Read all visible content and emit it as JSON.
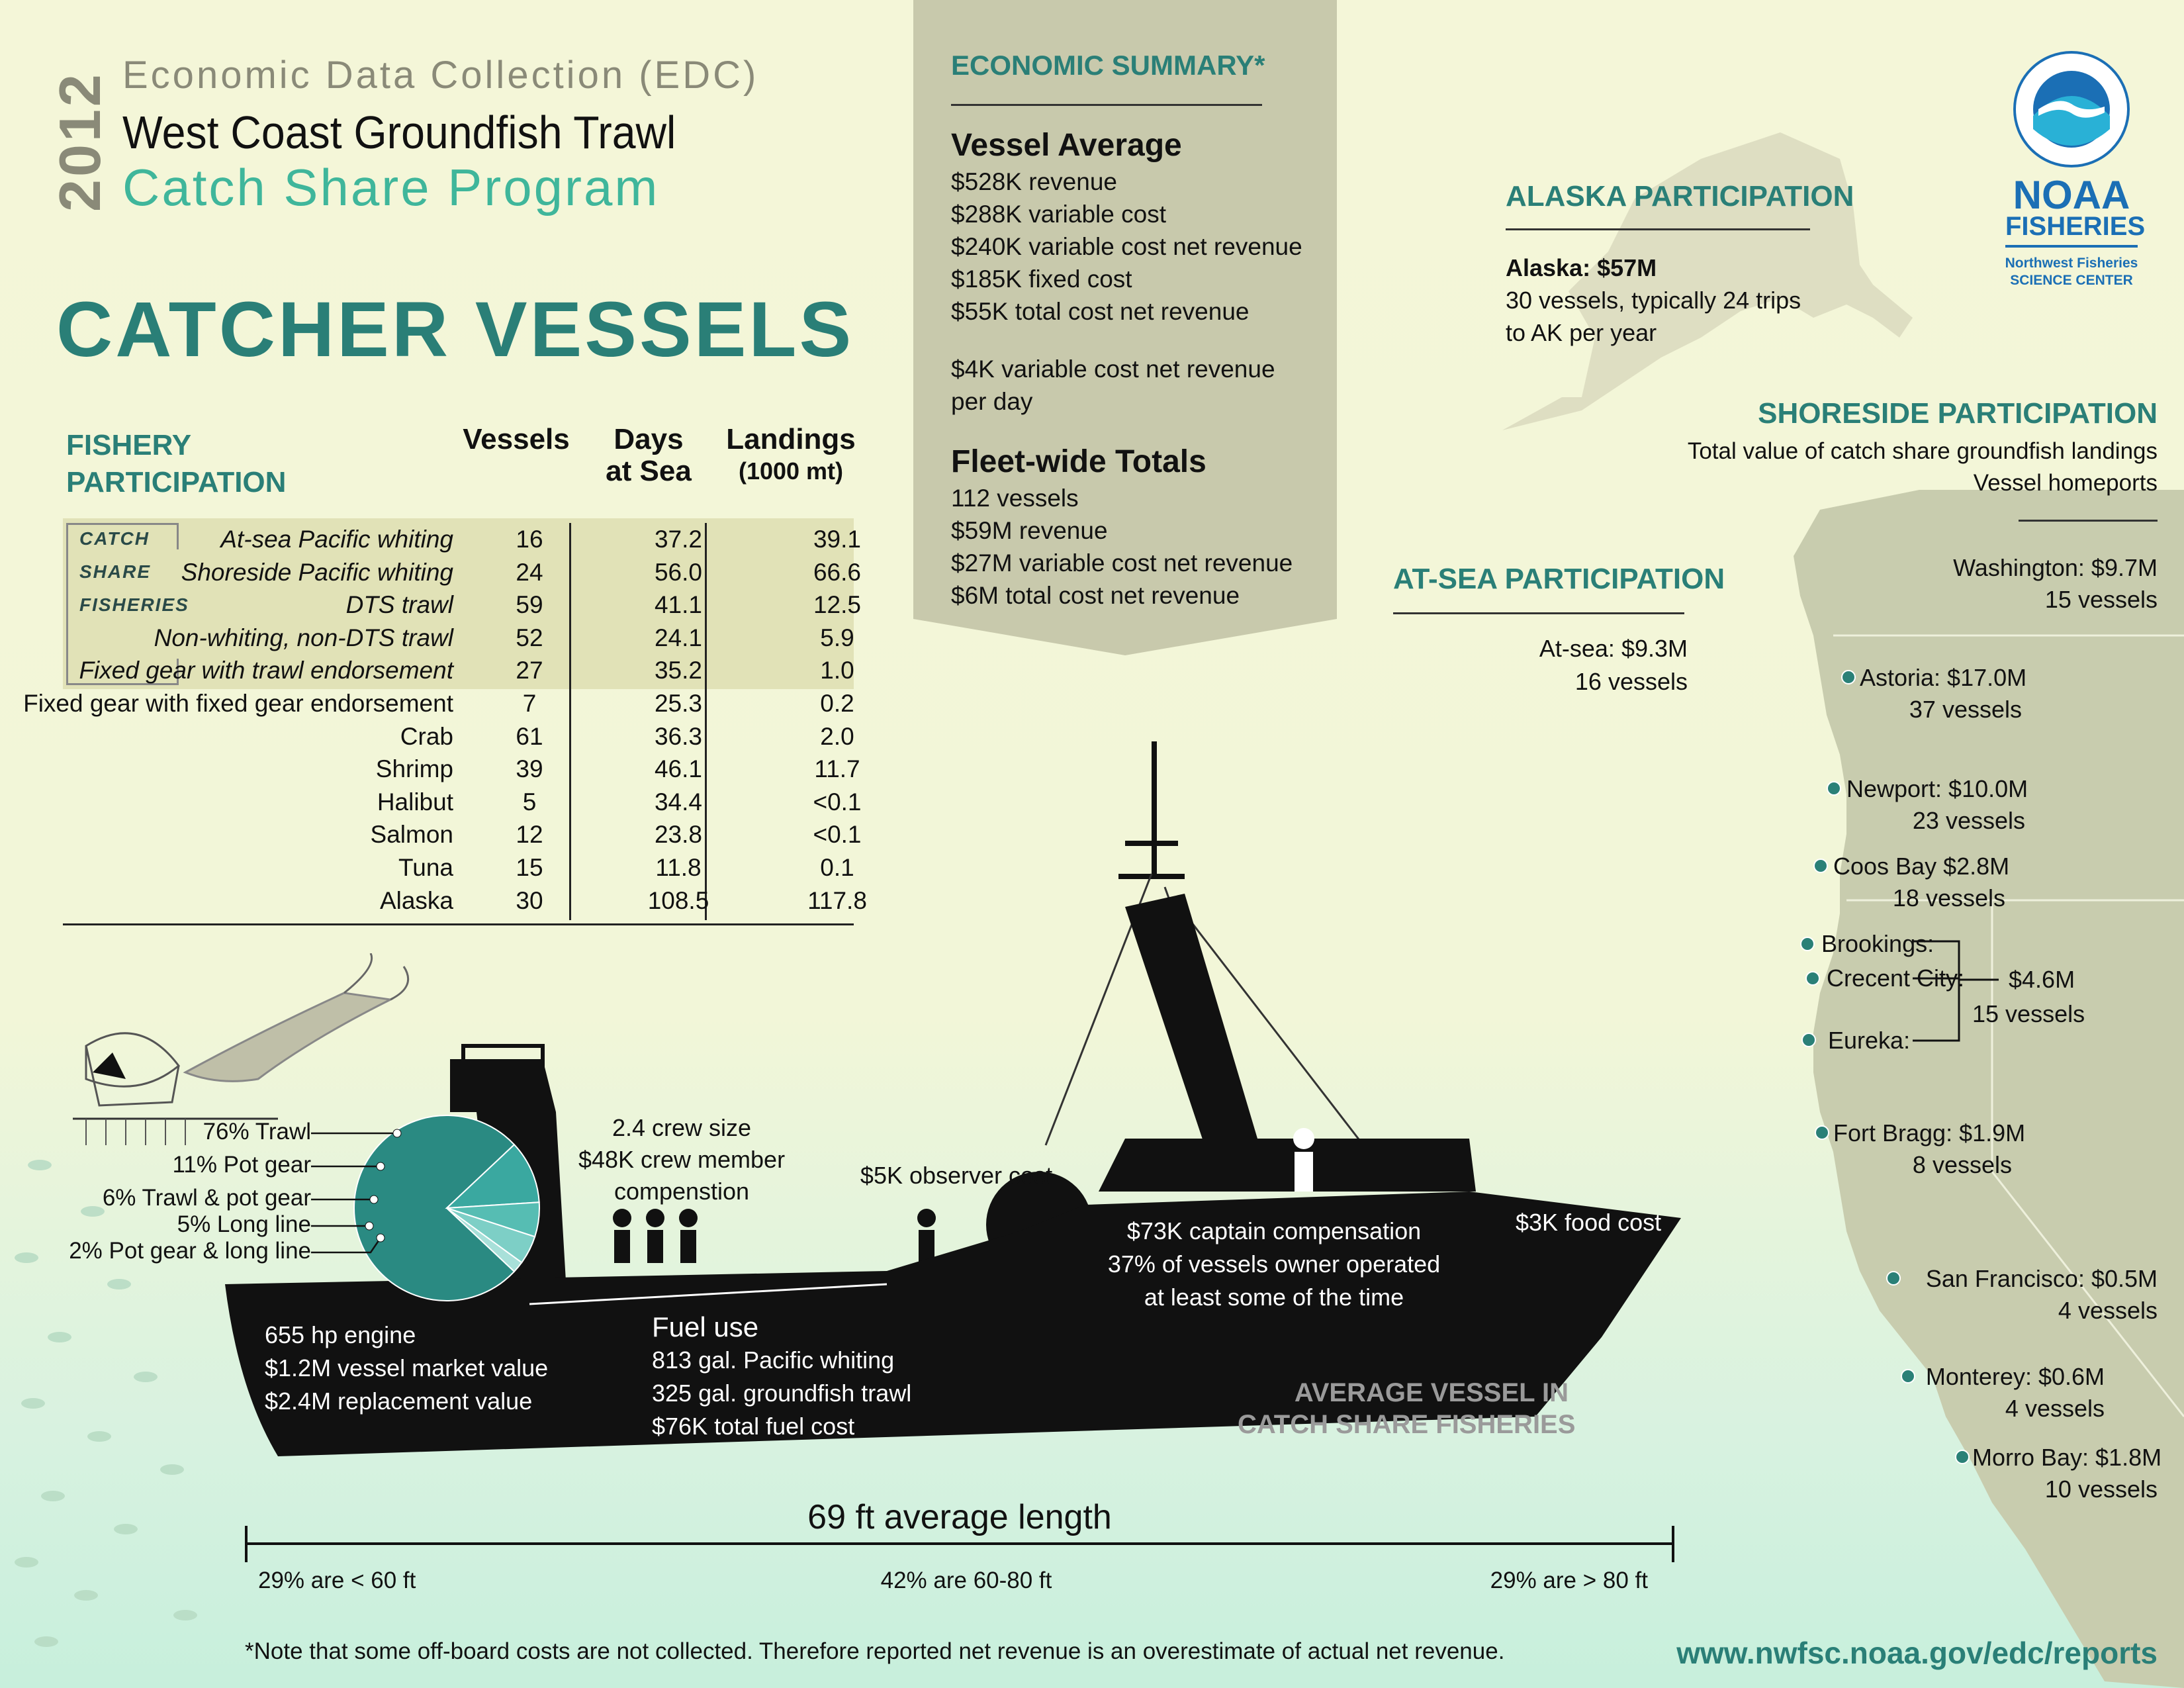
{
  "header": {
    "year": "2012",
    "edc": "Economic Data Collection (EDC)",
    "program_line1": "West Coast Groundfish Trawl",
    "program_line2": "Catch Share Program",
    "title": "CATCHER VESSELS"
  },
  "participation_table": {
    "title_line1": "FISHERY",
    "title_line2": "PARTICIPATION",
    "columns": {
      "vessels": "Vessels",
      "days_line1": "Days",
      "days_line2": "at Sea",
      "landings_line1": "Landings",
      "landings_line2": "(1000 mt)"
    },
    "catch_share_label": [
      "CATCH",
      "SHARE",
      "FISHERIES"
    ],
    "rows": [
      {
        "name": "At-sea Pacific whiting",
        "vessels": "16",
        "days": "37.2",
        "landings": "39.1"
      },
      {
        "name": "Shoreside Pacific whiting",
        "vessels": "24",
        "days": "56.0",
        "landings": "66.6"
      },
      {
        "name": "DTS trawl",
        "vessels": "59",
        "days": "41.1",
        "landings": "12.5"
      },
      {
        "name": "Non-whiting, non-DTS trawl",
        "vessels": "52",
        "days": "24.1",
        "landings": "5.9"
      },
      {
        "name": "Fixed gear with trawl endorsement",
        "vessels": "27",
        "days": "35.2",
        "landings": "1.0"
      },
      {
        "name": "Fixed gear with fixed gear endorsement",
        "vessels": "7",
        "days": "25.3",
        "landings": "0.2"
      },
      {
        "name": "Crab",
        "vessels": "61",
        "days": "36.3",
        "landings": "2.0"
      },
      {
        "name": "Shrimp",
        "vessels": "39",
        "days": "46.1",
        "landings": "11.7"
      },
      {
        "name": "Halibut",
        "vessels": "5",
        "days": "34.4",
        "landings": "<0.1"
      },
      {
        "name": "Salmon",
        "vessels": "12",
        "days": "23.8",
        "landings": "<0.1"
      },
      {
        "name": "Tuna",
        "vessels": "15",
        "days": "11.8",
        "landings": "0.1"
      },
      {
        "name": "Alaska",
        "vessels": "30",
        "days": "108.5",
        "landings": "117.8"
      }
    ]
  },
  "economic_summary": {
    "title": "ECONOMIC SUMMARY*",
    "vessel_average_title": "Vessel Average",
    "vessel_average": [
      "$528K revenue",
      "$288K variable cost",
      "$240K variable cost net revenue",
      "$185K fixed cost",
      "$55K total cost net revenue"
    ],
    "per_day_line1": "$4K variable cost net revenue",
    "per_day_line2": "per day",
    "fleet_title": "Fleet-wide Totals",
    "fleet": [
      "112 vessels",
      "$59M revenue",
      "$27M variable cost net revenue",
      "$6M total cost net revenue"
    ]
  },
  "alaska": {
    "title": "ALASKA PARTICIPATION",
    "line1": "Alaska: $57M",
    "line2": "30 vessels, typically 24 trips",
    "line3": "to AK per year"
  },
  "noaa": {
    "name": "NOAA",
    "fisheries": "FISHERIES",
    "center_line1": "Northwest Fisheries",
    "center_line2": "SCIENCE CENTER"
  },
  "at_sea": {
    "title": "AT-SEA PARTICIPATION",
    "line1": "At-sea: $9.3M",
    "line2": "16 vessels"
  },
  "shoreside": {
    "title": "SHORESIDE PARTICIPATION",
    "subtitle1": "Total value of catch share groundfish landings",
    "subtitle2": "Vessel homeports",
    "washington_line1": "Washington: $9.7M",
    "washington_line2": "15 vessels",
    "ports": [
      {
        "line1": "Astoria: $17.0M",
        "line2": "37 vessels"
      },
      {
        "line1": "Newport: $10.0M",
        "line2": "23 vessels"
      },
      {
        "line1": "Coos Bay $2.8M",
        "line2": "18 vessels"
      },
      {
        "line1": "Fort Bragg: $1.9M",
        "line2": "8 vessels"
      },
      {
        "line1": "San Francisco: $0.5M",
        "line2": "4 vessels"
      },
      {
        "line1": "Monterey: $0.6M",
        "line2": "4 vessels"
      },
      {
        "line1": "Morro Bay: $1.8M",
        "line2": "10 vessels"
      }
    ],
    "group": {
      "brookings": "Brookings:",
      "crescent": "Crecent City:",
      "eureka": "Eureka:",
      "value": "$4.6M",
      "vessels": "15 vessels"
    }
  },
  "vessel": {
    "crew_line1": "2.4 crew size",
    "crew_line2": "$48K crew member",
    "crew_line3": "compenstion",
    "observer": "$5K observer cost",
    "captain_line1": "$73K captain compensation",
    "captain_line2": "37% of vessels owner operated",
    "captain_line3": "at least some of the time",
    "food": "$3K food cost",
    "engine_line1": "655 hp engine",
    "engine_line2": "$1.2M vessel market value",
    "engine_line3": "$2.4M replacement value",
    "fuel_title": "Fuel use",
    "fuel_line1": "813 gal. Pacific whiting",
    "fuel_line2": "325 gal. groundfish trawl",
    "fuel_line3": "$76K total fuel cost",
    "avg_line1": "AVERAGE VESSEL IN",
    "avg_line2": "CATCH SHARE FISHERIES"
  },
  "gear_pie": {
    "labels": [
      "76% Trawl",
      "11% Pot gear",
      "6% Trawl & pot gear",
      "5% Long line",
      "2% Pot gear & long line"
    ],
    "values": [
      76,
      11,
      6,
      5,
      2
    ],
    "colors": [
      "#2a8a82",
      "#3aa8a0",
      "#56bdb3",
      "#7dcfc6",
      "#a8e0d9"
    ]
  },
  "length": {
    "title": "69 ft average length",
    "left": "29% are < 60 ft",
    "mid": "42% are 60-80 ft",
    "right": "29% are > 80 ft"
  },
  "footer": {
    "note": "*Note that some off-board costs are not collected. Therefore reported net revenue is an overestimate of actual net revenue.",
    "url": "www.nwfsc.noaa.gov/edc/reports"
  },
  "colors": {
    "teal": "#2a7f77",
    "light_teal": "#3fb69b",
    "background": "#f4f6d8",
    "noaa_blue": "#1b6fb5",
    "land": "#c8ccae"
  }
}
